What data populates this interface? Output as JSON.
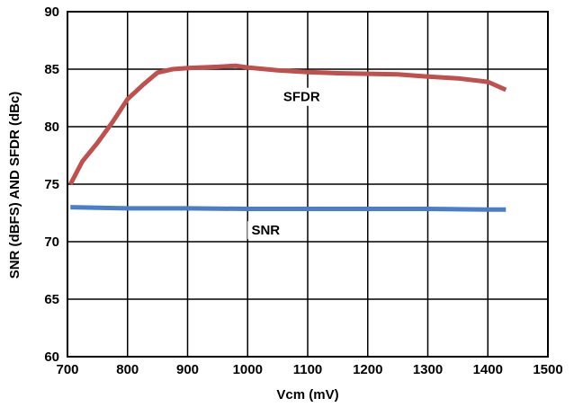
{
  "chart_data": {
    "type": "line",
    "title": "",
    "xlabel": "Vcm (mV)",
    "ylabel": "SNR (dBFS) AND SFDR (dBc)",
    "xlim": [
      700,
      1500
    ],
    "ylim": [
      60,
      90
    ],
    "xticks": [
      700,
      800,
      900,
      1000,
      1100,
      1200,
      1300,
      1400,
      1500
    ],
    "yticks": [
      60,
      65,
      70,
      75,
      80,
      85,
      90
    ],
    "grid": true,
    "legend": "none",
    "series": [
      {
        "name": "SFDR",
        "color": "#c0504d",
        "x": [
          705,
          725,
          750,
          775,
          800,
          825,
          850,
          875,
          900,
          950,
          980,
          1000,
          1050,
          1100,
          1150,
          1200,
          1250,
          1300,
          1350,
          1400,
          1430
        ],
        "y": [
          75.0,
          77.0,
          78.6,
          80.4,
          82.4,
          83.6,
          84.7,
          85.0,
          85.1,
          85.2,
          85.3,
          85.15,
          84.9,
          84.75,
          84.65,
          84.6,
          84.55,
          84.35,
          84.2,
          83.9,
          83.2
        ]
      },
      {
        "name": "SNR",
        "color": "#4a7ec8",
        "x": [
          705,
          800,
          900,
          1000,
          1100,
          1200,
          1300,
          1400,
          1430
        ],
        "y": [
          73.0,
          72.9,
          72.9,
          72.85,
          72.85,
          72.85,
          72.85,
          72.8,
          72.8
        ]
      }
    ],
    "annotations": [
      {
        "text": "SFDR",
        "x": 1090,
        "y": 82.6
      },
      {
        "text": "SNR",
        "x": 1030,
        "y": 71.0
      }
    ]
  }
}
